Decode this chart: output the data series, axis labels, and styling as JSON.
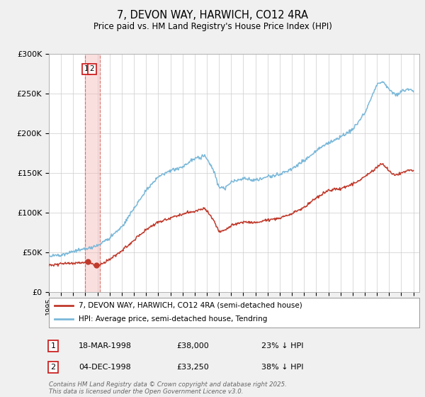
{
  "title": "7, DEVON WAY, HARWICH, CO12 4RA",
  "subtitle": "Price paid vs. HM Land Registry's House Price Index (HPI)",
  "ylim": [
    0,
    300000
  ],
  "yticks": [
    0,
    50000,
    100000,
    150000,
    200000,
    250000,
    300000
  ],
  "xlim_start": 1995.0,
  "xlim_end": 2025.5,
  "hpi_color": "#7ab8d9",
  "price_color": "#c0392b",
  "sale1_date": "18-MAR-1998",
  "sale1_price": 38000,
  "sale1_pct": "23% ↓ HPI",
  "sale1_year": 1998.21,
  "sale2_date": "04-DEC-1998",
  "sale2_price": 33250,
  "sale2_pct": "38% ↓ HPI",
  "sale2_year": 1998.92,
  "shade_x0": 1998.0,
  "shade_x1": 1999.2,
  "legend_line1": "7, DEVON WAY, HARWICH, CO12 4RA (semi-detached house)",
  "legend_line2": "HPI: Average price, semi-detached house, Tendring",
  "footer": "Contains HM Land Registry data © Crown copyright and database right 2025.\nThis data is licensed under the Open Government Licence v3.0.",
  "bg_color": "#f0f0f0",
  "plot_bg": "#ffffff",
  "grid_color": "#cccccc"
}
